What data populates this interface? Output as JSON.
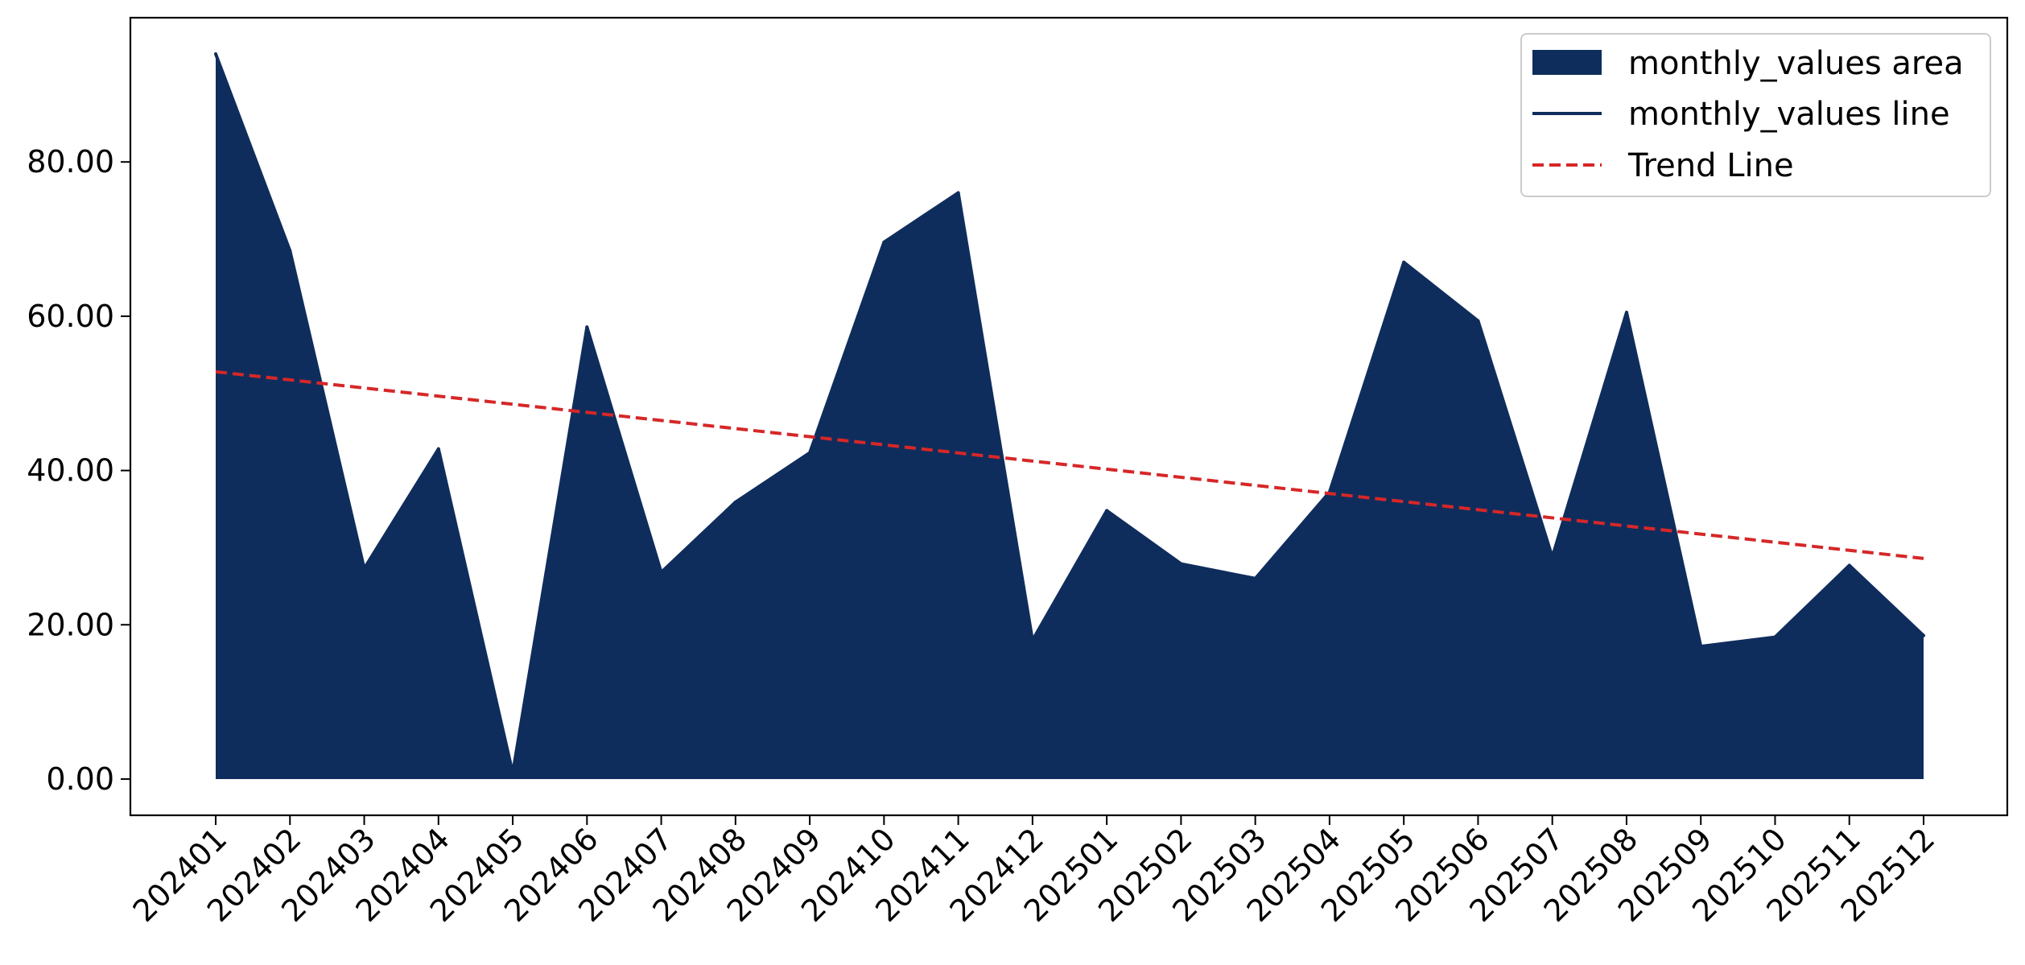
{
  "chart_data": {
    "type": "area",
    "categories": [
      "202401",
      "202402",
      "202403",
      "202404",
      "202405",
      "202406",
      "202407",
      "202408",
      "202409",
      "202410",
      "202411",
      "202412",
      "202501",
      "202502",
      "202503",
      "202504",
      "202505",
      "202506",
      "202507",
      "202508",
      "202509",
      "202510",
      "202511",
      "202512"
    ],
    "series": [
      {
        "name": "monthly_values area",
        "kind": "area",
        "color": "#0f2d5c",
        "values": [
          94.0,
          68.5,
          27.3,
          42.8,
          0.8,
          58.6,
          26.8,
          35.9,
          42.3,
          69.6,
          76.0,
          18.0,
          34.8,
          27.9,
          26.0,
          37.2,
          67.0,
          59.4,
          28.8,
          60.5,
          17.2,
          18.4,
          27.7,
          18.6
        ]
      },
      {
        "name": "monthly_values line",
        "kind": "line",
        "color": "#0f2d5c",
        "values": [
          94.0,
          68.5,
          27.3,
          42.8,
          0.8,
          58.6,
          26.8,
          35.9,
          42.3,
          69.6,
          76.0,
          18.0,
          34.8,
          27.9,
          26.0,
          37.2,
          67.0,
          59.4,
          28.8,
          60.5,
          17.2,
          18.4,
          27.7,
          18.6
        ]
      },
      {
        "name": "Trend Line",
        "kind": "trend",
        "color": "#d62728",
        "dashed": true,
        "start": 52.8,
        "end": 28.6
      }
    ],
    "y_ticks": [
      "0.00",
      "20.00",
      "40.00",
      "60.00",
      "80.00"
    ],
    "y_tick_values": [
      0,
      20,
      40,
      60,
      80
    ],
    "ylim": [
      -4.7,
      98.7
    ],
    "grid": false,
    "legend_position": "top-right",
    "title": "",
    "xlabel": "",
    "ylabel": ""
  }
}
